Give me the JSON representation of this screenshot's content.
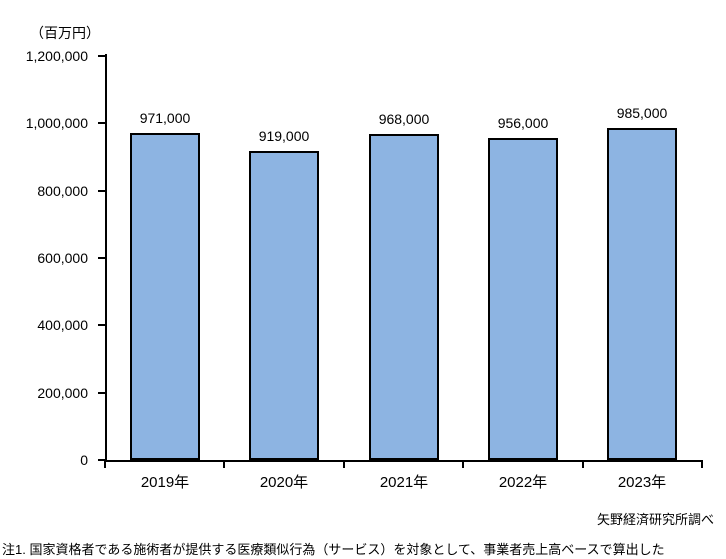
{
  "chart": {
    "unit_label": "（百万円）",
    "source": "矢野経済研究所調べ",
    "note": "注1. 国家資格者である施術者が提供する医療類似行為（サービス）を対象として、事業者売上高ベースで算出した"
  },
  "chart_data": {
    "type": "bar",
    "title": "",
    "xlabel": "",
    "ylabel": "（百万円）",
    "categories": [
      "2019年",
      "2020年",
      "2021年",
      "2022年",
      "2023年"
    ],
    "values": [
      971000,
      919000,
      968000,
      956000,
      985000
    ],
    "value_labels": [
      "971,000",
      "919,000",
      "968,000",
      "956,000",
      "985,000"
    ],
    "ylim": [
      0,
      1200000
    ],
    "ytick_interval": 200000,
    "ytick_labels": [
      "0",
      "200,000",
      "400,000",
      "600,000",
      "800,000",
      "1,000,000",
      "1,200,000"
    ],
    "grid": false,
    "legend_position": "none",
    "bar_fill_color": "#8DB4E2",
    "bar_border_color": "#000000",
    "axis_color": "#000000",
    "source": "矢野経済研究所調べ",
    "note": "注1. 国家資格者である施術者が提供する医療類似行為（サービス）を対象として、事業者売上高ベースで算出した"
  }
}
